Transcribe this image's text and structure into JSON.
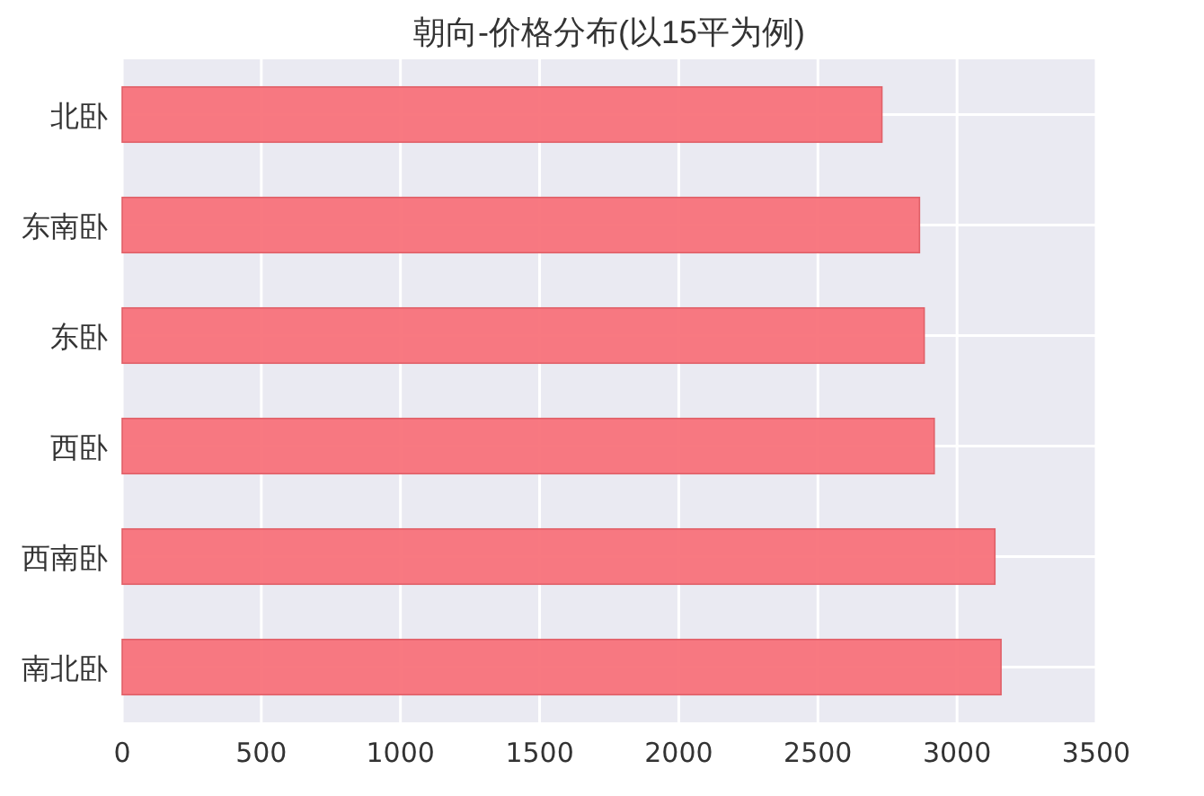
{
  "chart_data": {
    "type": "bar",
    "orientation": "horizontal",
    "title": "朝向-价格分布(以15平为例)",
    "categories": [
      "北卧",
      "东南卧",
      "东卧",
      "西卧",
      "西南卧",
      "南北卧"
    ],
    "values": [
      2730,
      2865,
      2882,
      2918,
      3136,
      3158
    ],
    "color": "#f8727a",
    "xlim": [
      0,
      3500
    ],
    "xticks": [
      0,
      500,
      1000,
      1500,
      2000,
      2500,
      3000,
      3500
    ],
    "grid": true
  }
}
